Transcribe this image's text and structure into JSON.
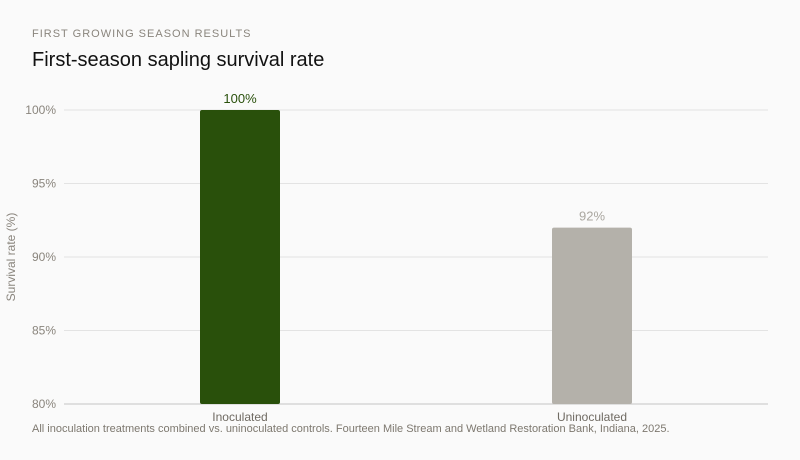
{
  "header": {
    "eyebrow": "FIRST GROWING SEASON RESULTS",
    "title": "First-season sapling survival rate"
  },
  "caption": "All inoculation treatments combined vs. uninoculated controls. Fourteen Mile Stream and Wetland Restoration Bank, Indiana, 2025.",
  "colors": {
    "inoculated": "#29500b",
    "uninoculated": "#b4b1aa",
    "inoculated_label": "#29500b",
    "uninoculated_label": "#aaa7a0",
    "grid": "#e3e3e3",
    "axis": "#cfcfcf"
  },
  "chart_data": {
    "type": "bar",
    "title": "First-season sapling survival rate",
    "categories": [
      "Inoculated",
      "Uninoculated"
    ],
    "values": [
      100,
      92
    ],
    "value_labels": [
      "100%",
      "92%"
    ],
    "ylabel": "Survival rate (%)",
    "xlabel": "",
    "ylim": [
      80,
      100
    ],
    "yticks": [
      80,
      85,
      90,
      95,
      100
    ],
    "ytick_labels": [
      "80%",
      "85%",
      "90%",
      "95%",
      "100%"
    ],
    "grid": true,
    "legend": "none"
  }
}
